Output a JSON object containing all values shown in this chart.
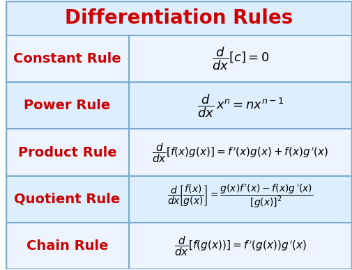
{
  "title": "Differentiation Rules",
  "title_color": "#CC0000",
  "title_fontsize": 20,
  "row_bg_odd": "#EEF4FF",
  "row_bg_even": "#DDEEFF",
  "border_color": "#7AAAD0",
  "rule_color": "#CC0000",
  "formula_color": "#000000",
  "rules": [
    {
      "name": "Constant Rule",
      "formula_key": "constant"
    },
    {
      "name": "Power Rule",
      "formula_key": "power"
    },
    {
      "name": "Product Rule",
      "formula_key": "product"
    },
    {
      "name": "Quotient Rule",
      "formula_key": "quotient"
    },
    {
      "name": "Chain Rule",
      "formula_key": "chain"
    }
  ],
  "formula_sizes": {
    "constant": 13,
    "power": 13,
    "product": 11,
    "quotient": 10,
    "chain": 11
  },
  "col_split": 0.355,
  "figsize": [
    5.06,
    3.88
  ],
  "dpi": 100
}
